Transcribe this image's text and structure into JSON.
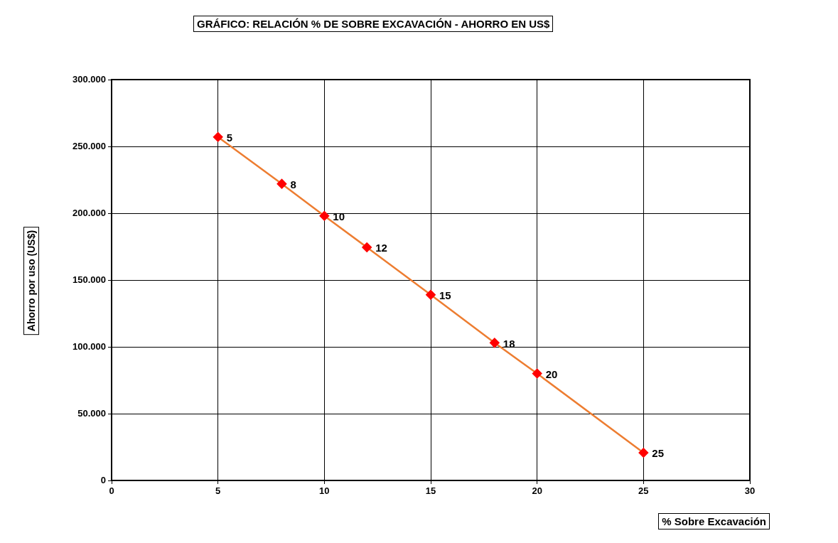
{
  "chart_data": {
    "type": "line",
    "title": "GRÁFICO: RELACIÓN % DE SOBRE EXCAVACIÓN - AHORRO EN US$",
    "xlabel": "% Sobre Excavación",
    "ylabel": "Ahorro por uso (US$)",
    "x": [
      5,
      8,
      10,
      12,
      15,
      18,
      20,
      25
    ],
    "series": [
      {
        "color": "#ed7d31",
        "colors": [
          "#ff0000",
          "#ff0000",
          "#ff0000",
          "#ff0000",
          "#ff0000",
          "#ff0000",
          "#ff0000",
          "#ff0000"
        ],
        "values": [
          257000,
          222000,
          198000,
          174500,
          139000,
          103000,
          80000,
          20700
        ]
      }
    ],
    "annotations": [
      {
        "text": "5",
        "x": 5,
        "y": 257000
      },
      {
        "text": "8",
        "x": 8,
        "y": 222000
      },
      {
        "text": "10",
        "x": 10,
        "y": 198000
      },
      {
        "text": "12",
        "x": 12,
        "y": 174500
      },
      {
        "text": "15",
        "x": 15,
        "y": 139000
      },
      {
        "text": "18",
        "x": 18,
        "y": 103000
      },
      {
        "text": "20",
        "x": 20,
        "y": 80000
      },
      {
        "text": "25",
        "x": 25,
        "y": 20700
      }
    ],
    "xlim": [
      0,
      30
    ],
    "xticks": [
      0,
      5,
      10,
      15,
      20,
      25,
      30
    ],
    "ylim": [
      0,
      300000
    ],
    "yticks": [
      0,
      {
        "value": 50000,
        "label": "50.000"
      },
      {
        "value": 100000,
        "label": "100.000"
      },
      {
        "value": 150000,
        "label": "150.000"
      },
      {
        "value": 200000,
        "label": "200.000"
      },
      {
        "value": 250000,
        "label": "250.000"
      },
      {
        "value": 300000,
        "label": "300.000"
      }
    ],
    "grid": true,
    "legend": false,
    "marker": "diamond",
    "line_style": "solid"
  }
}
